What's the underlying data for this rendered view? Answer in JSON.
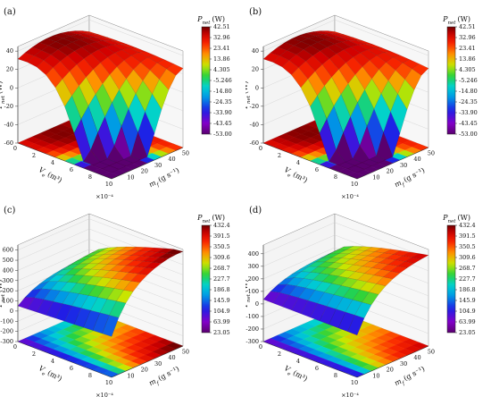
{
  "chart_data": [
    {
      "type": "surface3d",
      "panel_label": "(a)",
      "x_label": "V",
      "x_label_sub": "e",
      "x_label_unit": "(m³)",
      "x_multiplier": "×10⁻⁴",
      "x_ticks": [
        "0",
        "2",
        "4",
        "6",
        "8",
        "10"
      ],
      "y_label": "m",
      "y_label_sub": "f",
      "y_label_unit": "(g s⁻¹)",
      "y_ticks": [
        "10",
        "20",
        "30",
        "40",
        "50"
      ],
      "z_label": "P",
      "z_label_sub": "net",
      "z_label_unit": "(W)",
      "z_ticks": [
        "-60",
        "-40",
        "-20",
        "0",
        "20",
        "40"
      ],
      "zlim": [
        -60,
        45
      ],
      "colorbar_title": "P",
      "colorbar_title_sub": "net",
      "colorbar_unit": "(W)",
      "colorbar_ticks": [
        "42.51",
        "32.96",
        "23.41",
        "13.86",
        "4.305",
        "-5.246",
        "-14.80",
        "-24.35",
        "-33.90",
        "-43.45",
        "-53.00"
      ],
      "surface_shape": "peak",
      "grid": true
    },
    {
      "type": "surface3d",
      "panel_label": "(b)",
      "x_label": "V",
      "x_label_sub": "e",
      "x_label_unit": "(m³)",
      "x_multiplier": "×10⁻⁴",
      "x_ticks": [
        "0",
        "2",
        "4",
        "6",
        "8",
        "10"
      ],
      "y_label": "m",
      "y_label_sub": "f",
      "y_label_unit": "(g s⁻¹)",
      "y_ticks": [
        "10",
        "20",
        "30",
        "40",
        "50"
      ],
      "z_label": "P",
      "z_label_sub": "net",
      "z_label_unit": "(W)",
      "z_ticks": [
        "-60",
        "-40",
        "-20",
        "0",
        "20",
        "40"
      ],
      "zlim": [
        -60,
        45
      ],
      "colorbar_title": "P",
      "colorbar_title_sub": "net",
      "colorbar_unit": "(W)",
      "colorbar_ticks": [
        "42.51",
        "32.96",
        "23.41",
        "13.86",
        "4.305",
        "-5.246",
        "-14.80",
        "-24.35",
        "-33.90",
        "-43.45",
        "-53.00"
      ],
      "surface_shape": "peak",
      "grid": true
    },
    {
      "type": "surface3d",
      "panel_label": "(c)",
      "x_label": "V",
      "x_label_sub": "e",
      "x_label_unit": "(m³)",
      "x_multiplier": "×10⁻⁴",
      "x_ticks": [
        "0",
        "2",
        "4",
        "6",
        "8",
        "10"
      ],
      "y_label": "m",
      "y_label_sub": "f",
      "y_label_unit": "(g s⁻¹)",
      "y_ticks": [
        "10",
        "20",
        "30",
        "40",
        "50"
      ],
      "z_label": "P",
      "z_label_sub": "net",
      "z_label_unit": "(W)",
      "z_ticks": [
        "-300",
        "-200",
        "-100",
        "0",
        "100",
        "200",
        "300",
        "400",
        "500",
        "600"
      ],
      "zlim": [
        -300,
        650
      ],
      "colorbar_title": "P",
      "colorbar_title_sub": "net",
      "colorbar_unit": "(W)",
      "colorbar_ticks": [
        "432.4",
        "391.5",
        "350.5",
        "309.6",
        "268.7",
        "227.7",
        "186.8",
        "145.9",
        "104.9",
        "63.99",
        "23.05"
      ],
      "surface_shape": "rising",
      "grid": true
    },
    {
      "type": "surface3d",
      "panel_label": "(d)",
      "x_label": "V",
      "x_label_sub": "e",
      "x_label_unit": "(m³)",
      "x_multiplier": "×10⁻⁴",
      "x_ticks": [
        "0",
        "2",
        "4",
        "6",
        "8",
        "10"
      ],
      "y_label": "m",
      "y_label_sub": "f",
      "y_label_unit": "(g s⁻¹)",
      "y_ticks": [
        "10",
        "20",
        "30",
        "40",
        "50"
      ],
      "z_label": "P",
      "z_label_sub": "net",
      "z_label_unit": "(W)",
      "z_ticks": [
        "-300",
        "-200",
        "-100",
        "0",
        "100",
        "200",
        "300",
        "400"
      ],
      "zlim": [
        -300,
        470
      ],
      "colorbar_title": "P",
      "colorbar_title_sub": "net",
      "colorbar_unit": "(W)",
      "colorbar_ticks": [
        "432.4",
        "391.5",
        "350.5",
        "309.6",
        "268.7",
        "227.7",
        "186.8",
        "145.9",
        "104.9",
        "63.99",
        "23.05"
      ],
      "surface_shape": "rising",
      "grid": true
    }
  ]
}
